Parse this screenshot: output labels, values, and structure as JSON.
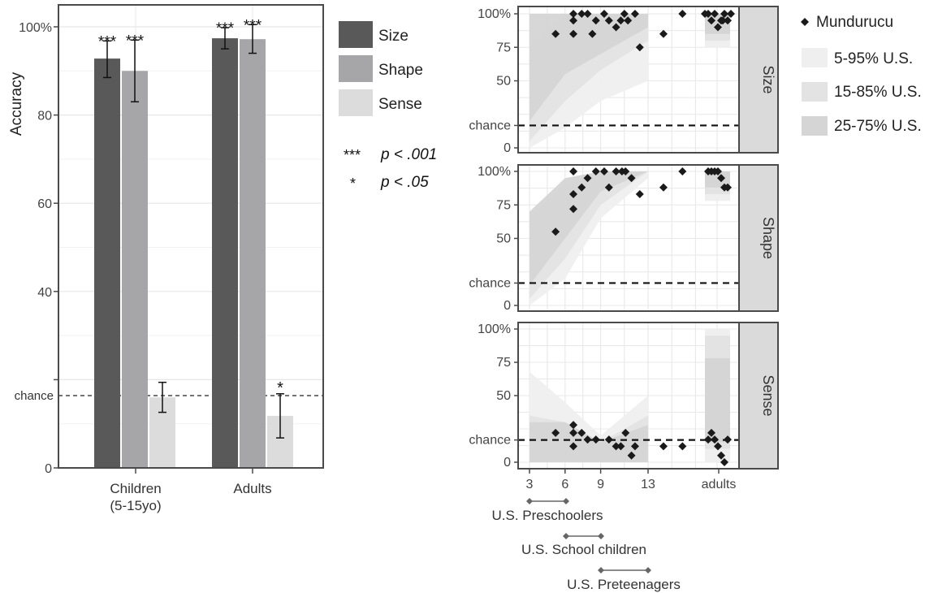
{
  "left_chart": {
    "ylabel": "Accuracy",
    "chance_label": "chance",
    "y_tick_labels": [
      "0",
      "",
      "40",
      "60",
      "80",
      "100%"
    ],
    "legend_items": [
      "Size",
      "Shape",
      "Sense"
    ],
    "sig_legend": [
      {
        "stars": "***",
        "text": "p < .001"
      },
      {
        "stars": "*",
        "text": "p < .05"
      }
    ],
    "groups": [
      {
        "line1": "Children",
        "line2": "(5-15yo)"
      },
      {
        "line1": "Adults",
        "line2": ""
      }
    ]
  },
  "right_chart": {
    "panel_labels": [
      "Size",
      "Shape",
      "Sense"
    ],
    "y_tick_labels": [
      "0",
      "chance",
      "50",
      "75",
      "100%"
    ],
    "x_tick_labels": [
      "3",
      "6",
      "9",
      "13",
      "adults"
    ],
    "legend": {
      "mundurucu": "Mundurucu",
      "bands": [
        "5-95% U.S.",
        "15-85% U.S.",
        "25-75% U.S."
      ]
    },
    "age_groups": [
      "U.S. Preschoolers",
      "U.S. School children",
      "U.S. Preteenagers"
    ]
  },
  "colors": {
    "size": "#595959",
    "shape": "#a6a6a8",
    "sense": "#dcdcdd",
    "band_5_95": "#efeff0",
    "band_15_85": "#e3e3e4",
    "band_25_75": "#d5d5d6",
    "strip": "#dadadb",
    "frame": "#4a4a4a",
    "point": "#1a1a1a"
  },
  "chart_data": [
    {
      "type": "bar",
      "ylabel": "Accuracy",
      "ylim": [
        0,
        100
      ],
      "chance": 16.7,
      "categories": [
        "Children (5-15yo)",
        "Adults"
      ],
      "series": [
        {
          "name": "Size",
          "values": [
            92.8,
            97.4
          ],
          "err_low": [
            88.5,
            95.0
          ],
          "err_high": [
            96.8,
            99.8
          ],
          "sig": [
            "***",
            "***"
          ]
        },
        {
          "name": "Shape",
          "values": [
            90.0,
            97.2
          ],
          "err_low": [
            83.0,
            94.0
          ],
          "err_high": [
            97.0,
            100.5
          ],
          "sig": [
            "***",
            "***"
          ]
        },
        {
          "name": "Sense",
          "values": [
            16.0,
            11.8
          ],
          "err_low": [
            12.6,
            6.8
          ],
          "err_high": [
            19.4,
            16.8
          ],
          "sig": [
            "",
            "*"
          ]
        }
      ]
    },
    {
      "type": "scatter",
      "x_ticks": [
        "3",
        "6",
        "9",
        "13",
        "adults"
      ],
      "y_ticks": [
        "0",
        "chance",
        "50",
        "75",
        "100%"
      ],
      "chance": 16.7,
      "panels": [
        {
          "name": "Size",
          "points": [
            [
              5.2,
              85
            ],
            [
              6.7,
              100
            ],
            [
              6.7,
              95
            ],
            [
              6.7,
              85
            ],
            [
              7.4,
              100
            ],
            [
              7.9,
              100
            ],
            [
              8.3,
              85
            ],
            [
              8.6,
              95
            ],
            [
              9.3,
              100
            ],
            [
              9.7,
              95
            ],
            [
              10.3,
              90
            ],
            [
              10.7,
              95
            ],
            [
              11.0,
              100
            ],
            [
              11.3,
              95
            ],
            [
              11.9,
              100
            ],
            [
              12.3,
              75
            ],
            [
              14.3,
              85
            ],
            [
              15.9,
              100
            ],
            [
              "adults",
              100
            ],
            [
              "adults",
              95
            ],
            [
              "adults",
              100
            ],
            [
              "adults",
              90
            ],
            [
              "adults",
              95
            ],
            [
              "adults",
              100
            ],
            [
              "adults",
              95
            ],
            [
              "adults",
              100
            ],
            [
              "adults",
              100
            ],
            [
              "adults",
              95
            ]
          ],
          "bands": {
            "p5_95": {
              "x": [
                3,
                6,
                9,
                13
              ],
              "low": [
                0,
                15,
                35,
                50
              ],
              "high": [
                65,
                90,
                100,
                100
              ]
            },
            "p15_85": {
              "x": [
                3,
                6,
                9,
                13
              ],
              "low": [
                5,
                35,
                58,
                80
              ],
              "high": [
                75,
                100,
                100,
                100
              ]
            },
            "p25_75": {
              "x": [
                3,
                6,
                9,
                13
              ],
              "low": [
                20,
                55,
                70,
                90
              ],
              "high": [
                100,
                100,
                100,
                100
              ]
            },
            "adults": {
              "low": 75,
              "high": 100
            }
          }
        },
        {
          "name": "Shape",
          "points": [
            [
              5.2,
              55
            ],
            [
              6.7,
              72
            ],
            [
              6.7,
              83
            ],
            [
              6.7,
              100
            ],
            [
              7.4,
              88
            ],
            [
              7.9,
              95
            ],
            [
              8.6,
              100
            ],
            [
              9.3,
              100
            ],
            [
              9.7,
              88
            ],
            [
              10.3,
              100
            ],
            [
              10.8,
              100
            ],
            [
              11.1,
              100
            ],
            [
              11.6,
              95
            ],
            [
              12.3,
              83
            ],
            [
              14.3,
              88
            ],
            [
              15.9,
              100
            ],
            [
              "adults",
              100
            ],
            [
              "adults",
              100
            ],
            [
              "adults",
              100
            ],
            [
              "adults",
              100
            ],
            [
              "adults",
              95
            ],
            [
              "adults",
              88
            ],
            [
              "adults",
              88
            ]
          ],
          "bands": {
            "p5_95": {
              "x": [
                3,
                6,
                9,
                13
              ],
              "low": [
                0,
                20,
                65,
                95
              ],
              "high": [
                55,
                85,
                100,
                100
              ]
            },
            "p15_85": {
              "x": [
                3,
                6,
                9,
                13
              ],
              "low": [
                5,
                35,
                75,
                100
              ],
              "high": [
                65,
                90,
                100,
                100
              ]
            },
            "p25_75": {
              "x": [
                3,
                6,
                9,
                13
              ],
              "low": [
                15,
                50,
                85,
                100
              ],
              "high": [
                70,
                95,
                100,
                100
              ]
            },
            "adults": {
              "low": 78,
              "high": 100
            }
          }
        },
        {
          "name": "Sense",
          "points": [
            [
              5.2,
              22
            ],
            [
              6.7,
              28
            ],
            [
              6.7,
              22
            ],
            [
              6.7,
              12
            ],
            [
              7.4,
              22
            ],
            [
              7.9,
              17
            ],
            [
              8.6,
              17
            ],
            [
              9.7,
              17
            ],
            [
              10.3,
              12
            ],
            [
              10.7,
              12
            ],
            [
              11.1,
              22
            ],
            [
              11.6,
              5
            ],
            [
              11.9,
              12
            ],
            [
              14.3,
              12
            ],
            [
              15.9,
              12
            ],
            [
              "adults",
              17
            ],
            [
              "adults",
              22
            ],
            [
              "adults",
              17
            ],
            [
              "adults",
              12
            ],
            [
              "adults",
              5
            ],
            [
              "adults",
              0
            ],
            [
              "adults",
              17
            ]
          ],
          "bands": {
            "p5_95": {
              "x": [
                3,
                6,
                9,
                13
              ],
              "low": [
                0,
                0,
                0,
                0
              ],
              "high": [
                68,
                45,
                20,
                50
              ]
            },
            "p15_85": {
              "x": [
                3,
                6,
                9,
                13
              ],
              "low": [
                0,
                0,
                0,
                0
              ],
              "high": [
                35,
                30,
                15,
                35
              ]
            },
            "p25_75": {
              "x": [
                3,
                6,
                9,
                13
              ],
              "low": [
                0,
                0,
                0,
                0
              ],
              "high": [
                30,
                30,
                15,
                28
              ]
            },
            "adults": {
              "low": 0,
              "high": 100
            }
          }
        }
      ]
    }
  ]
}
